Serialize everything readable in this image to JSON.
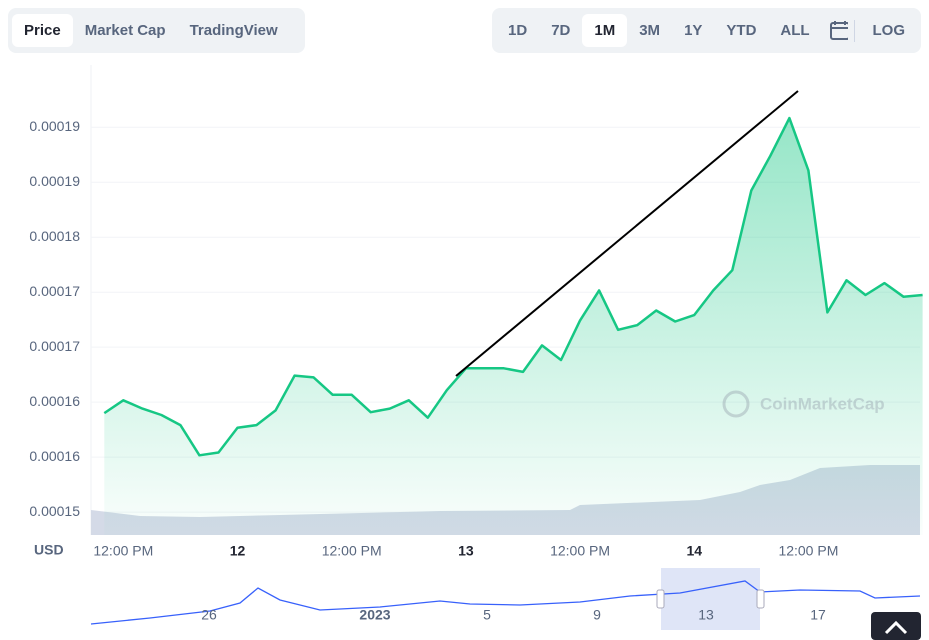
{
  "tabs": [
    "Price",
    "Market Cap",
    "TradingView"
  ],
  "ranges": [
    "1D",
    "7D",
    "1M",
    "3M",
    "1Y",
    "YTD",
    "ALL"
  ],
  "log_button": "LOG",
  "axis_unit": "USD",
  "watermark": "CoinMarketCap",
  "navigator": {
    "labels": [
      "26",
      "2023",
      "5",
      "9",
      "13",
      "17"
    ]
  },
  "chart_data": {
    "type": "area",
    "categories": [
      null,
      "12:00 PM",
      null,
      null,
      null,
      null,
      null,
      "12",
      null,
      null,
      null,
      null,
      null,
      "12:00 PM",
      null,
      null,
      null,
      null,
      null,
      "13",
      null,
      null,
      null,
      null,
      null,
      "12:00 PM",
      null,
      null,
      null,
      null,
      null,
      "14",
      null,
      null,
      null,
      null,
      null,
      "12:00 PM",
      null,
      null,
      null,
      null,
      null,
      null
    ],
    "series": [
      {
        "name": "Price",
        "color": "#16c784",
        "values": [
          0.0001608,
          0.0001622,
          0.0001613,
          0.0001606,
          0.0001595,
          0.0001562,
          0.0001565,
          0.0001592,
          0.0001595,
          0.0001611,
          0.0001649,
          0.0001647,
          0.0001628,
          0.0001628,
          0.0001609,
          0.0001613,
          0.0001622,
          0.0001603,
          0.0001633,
          0.0001657,
          0.0001657,
          0.0001657,
          0.0001653,
          0.0001682,
          0.0001666,
          0.0001709,
          0.0001742,
          0.0001699,
          0.0001704,
          0.000172,
          0.0001708,
          0.0001715,
          0.0001742,
          0.0001764,
          0.0001851,
          0.0001889,
          0.000193,
          0.0001873,
          0.0001718,
          0.0001753,
          0.0001737,
          0.000175,
          0.0001735,
          0.0001737
        ]
      }
    ],
    "ylim": [
      0.0001475,
      0.0001988
    ],
    "yticks": [
      {
        "value": 0.00015,
        "label": "0.00015"
      },
      {
        "value": 0.000156,
        "label": "0.00016"
      },
      {
        "value": 0.000162,
        "label": "0.00016"
      },
      {
        "value": 0.000168,
        "label": "0.00017"
      },
      {
        "value": 0.000174,
        "label": "0.00017"
      },
      {
        "value": 0.00018,
        "label": "0.00018"
      },
      {
        "value": 0.000186,
        "label": "0.00019"
      },
      {
        "value": 0.000192,
        "label": "0.00019"
      }
    ],
    "grid": true
  }
}
